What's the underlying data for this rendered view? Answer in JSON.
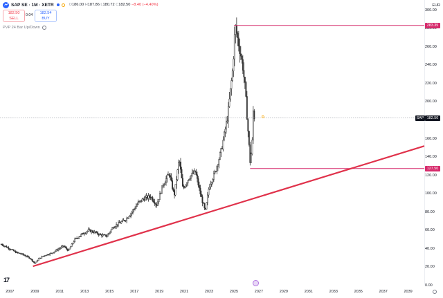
{
  "header": {
    "symbol_line": "SAP SE · 1M · XETR",
    "ohlc": {
      "open_label": "O",
      "open": "186.00",
      "high_label": "H",
      "high": "187.86",
      "low_label": "L",
      "low": "180.72",
      "close_label": "C",
      "close": "182.50",
      "change": "−8.40 (−4.40%)"
    }
  },
  "trade": {
    "sell_price": "182.50",
    "sell_label": "SELL",
    "spread": "0.04",
    "buy_price": "182.54",
    "buy_label": "BUY"
  },
  "indicator": {
    "label": "PVP 24 Bar Up/Down"
  },
  "currency": "EUR",
  "y_axis": {
    "ticks": [
      "300.00",
      "280.00",
      "260.00",
      "240.00",
      "220.00",
      "200.00",
      "180.00",
      "160.00",
      "140.00",
      "120.00",
      "100.00",
      "80.00",
      "60.00",
      "40.00",
      "20.00",
      "0.00"
    ]
  },
  "x_axis": {
    "ticks": [
      "2007",
      "2009",
      "2011",
      "2013",
      "2015",
      "2017",
      "2019",
      "2021",
      "2023",
      "2025",
      "2027",
      "2029",
      "2031",
      "2033",
      "2035",
      "2037",
      "2039"
    ]
  },
  "price_labels": {
    "high_level": "283.35",
    "low_level": "127.50",
    "current": "182.50",
    "current_symbol": "SAP"
  },
  "marker": {
    "dividend": "D"
  },
  "colors": {
    "trendline": "#e0324b",
    "level_line": "#d62a6b",
    "level_label_bg": "#d62a6b",
    "candle": "#333333",
    "accent": "#2962ff",
    "down": "#f23645"
  },
  "chart_data": {
    "type": "candlestick",
    "interval": "1M",
    "currency": "EUR",
    "ylim": [
      0,
      305
    ],
    "xlim": [
      2006.2,
      2040.3
    ],
    "series": [
      {
        "name": "SAP",
        "points": [
          {
            "t": 2006.3,
            "v": 45
          },
          {
            "t": 2007.0,
            "v": 40
          },
          {
            "t": 2007.5,
            "v": 36
          },
          {
            "t": 2008.0,
            "v": 34
          },
          {
            "t": 2008.6,
            "v": 30
          },
          {
            "t": 2009.0,
            "v": 24
          },
          {
            "t": 2009.3,
            "v": 29
          },
          {
            "t": 2009.8,
            "v": 33
          },
          {
            "t": 2010.3,
            "v": 35
          },
          {
            "t": 2010.8,
            "v": 39
          },
          {
            "t": 2011.3,
            "v": 43
          },
          {
            "t": 2011.7,
            "v": 38
          },
          {
            "t": 2012.2,
            "v": 50
          },
          {
            "t": 2012.8,
            "v": 56
          },
          {
            "t": 2013.3,
            "v": 60
          },
          {
            "t": 2013.8,
            "v": 58
          },
          {
            "t": 2014.3,
            "v": 55
          },
          {
            "t": 2014.8,
            "v": 54
          },
          {
            "t": 2015.3,
            "v": 64
          },
          {
            "t": 2015.8,
            "v": 68
          },
          {
            "t": 2016.3,
            "v": 72
          },
          {
            "t": 2016.8,
            "v": 80
          },
          {
            "t": 2017.3,
            "v": 90
          },
          {
            "t": 2017.8,
            "v": 95
          },
          {
            "t": 2018.3,
            "v": 97
          },
          {
            "t": 2018.8,
            "v": 88
          },
          {
            "t": 2019.3,
            "v": 110
          },
          {
            "t": 2019.8,
            "v": 122
          },
          {
            "t": 2020.2,
            "v": 98
          },
          {
            "t": 2020.6,
            "v": 138
          },
          {
            "t": 2020.9,
            "v": 105
          },
          {
            "t": 2021.4,
            "v": 118
          },
          {
            "t": 2021.9,
            "v": 124
          },
          {
            "t": 2022.3,
            "v": 100
          },
          {
            "t": 2022.7,
            "v": 80
          },
          {
            "t": 2023.0,
            "v": 108
          },
          {
            "t": 2023.5,
            "v": 124
          },
          {
            "t": 2024.0,
            "v": 148
          },
          {
            "t": 2024.5,
            "v": 185
          },
          {
            "t": 2024.9,
            "v": 235
          },
          {
            "t": 2025.1,
            "v": 283
          },
          {
            "t": 2025.4,
            "v": 262
          },
          {
            "t": 2025.7,
            "v": 240
          },
          {
            "t": 2025.9,
            "v": 215
          },
          {
            "t": 2026.1,
            "v": 175
          },
          {
            "t": 2026.3,
            "v": 135
          },
          {
            "t": 2026.45,
            "v": 150
          },
          {
            "t": 2026.55,
            "v": 190
          },
          {
            "t": 2026.65,
            "v": 182.5
          }
        ]
      }
    ],
    "horizontal_levels": [
      {
        "value": 283.35,
        "from": 2025.0
      },
      {
        "value": 127.5,
        "from": 2026.3
      }
    ],
    "trendline": {
      "from": [
        2008.85,
        21
      ],
      "to": [
        2040.3,
        152
      ]
    },
    "last_price": 182.5
  }
}
